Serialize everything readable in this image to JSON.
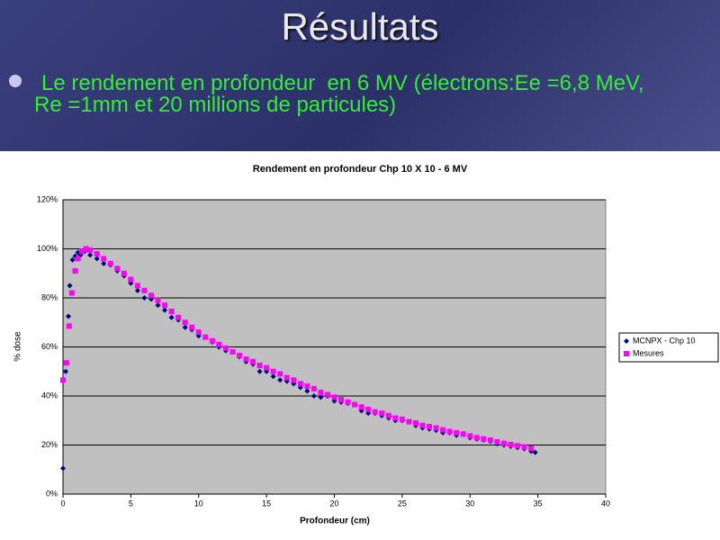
{
  "slide": {
    "title": "Résultats",
    "lines": [
      "Le rendement en profondeur  en 6 MV (électrons:Ee =6,8 MeV,",
      "Re =1mm et 20 millions de particules)"
    ]
  },
  "chart_data": {
    "type": "scatter",
    "title": "Rendement en profondeur Chp 10 X 10 - 6 MV",
    "x_label": "Profondeur (cm)",
    "y_label": "% dose",
    "xlim": [
      0,
      40
    ],
    "xticks": [
      0,
      5,
      10,
      15,
      20,
      25,
      30,
      35,
      40
    ],
    "ylim": [
      0,
      120
    ],
    "yticks": [
      {
        "value": 0,
        "label": "0%"
      },
      {
        "value": 20,
        "label": "20%"
      },
      {
        "value": 40,
        "label": "40%"
      },
      {
        "value": 60,
        "label": "60%"
      },
      {
        "value": 80,
        "label": "80%"
      },
      {
        "value": 100,
        "label": "100%"
      },
      {
        "value": 120,
        "label": "120%"
      }
    ],
    "grid": true,
    "legend": "right",
    "series": [
      {
        "name": "MCNPX - Chp 10",
        "color": "#000080",
        "marker": "diamond",
        "x": [
          0,
          0.2,
          0.4,
          0.5,
          0.7,
          0.9,
          1.1,
          1.3,
          1.6,
          2,
          2.5,
          3,
          3.5,
          4,
          4.5,
          5,
          5.5,
          6,
          6.5,
          7,
          7.5,
          8,
          8.5,
          9,
          9.5,
          10,
          10.5,
          11,
          11.5,
          12,
          12.5,
          13,
          13.5,
          14,
          14.5,
          15,
          15.5,
          16,
          16.5,
          17,
          17.5,
          18,
          18.5,
          19,
          19.5,
          20,
          20.5,
          21,
          21.5,
          22,
          22.5,
          23,
          23.5,
          24,
          24.5,
          25,
          25.5,
          26,
          26.5,
          27,
          27.5,
          28,
          28.5,
          29,
          29.5,
          30,
          30.5,
          31,
          31.5,
          32,
          32.5,
          33,
          33.5,
          34,
          34.5,
          34.8
        ],
        "values": [
          10.5,
          50,
          72.5,
          85,
          95.5,
          97,
          98.5,
          97.5,
          99,
          97.5,
          96,
          94,
          93.5,
          91,
          89,
          86,
          83,
          80,
          79.5,
          77,
          75,
          72,
          71,
          68,
          67,
          64.5,
          64,
          62,
          60,
          58.5,
          58,
          56,
          54,
          53,
          50,
          50,
          48,
          46.5,
          46,
          45,
          43.5,
          42,
          40,
          39.5,
          40,
          38,
          37.5,
          37,
          36.5,
          34,
          33,
          33,
          32,
          31,
          30,
          30,
          29.5,
          28,
          27,
          26.5,
          26,
          25,
          25,
          24,
          24.5,
          23,
          22.5,
          22,
          21.5,
          20.5,
          20,
          19.5,
          19,
          18.5,
          17.5,
          17
        ]
      },
      {
        "name": "Mesures",
        "color": "#ff00ff",
        "marker": "square",
        "x": [
          0,
          0.25,
          0.45,
          0.65,
          0.9,
          1.1,
          1.4,
          1.7,
          2,
          2.5,
          3,
          3.5,
          4,
          4.5,
          5,
          5.5,
          6,
          6.5,
          7,
          7.5,
          8,
          8.5,
          9,
          9.5,
          10,
          10.5,
          11,
          11.5,
          12,
          12.5,
          13,
          13.5,
          14,
          14.5,
          15,
          15.5,
          16,
          16.5,
          17,
          17.5,
          18,
          18.5,
          19,
          19.5,
          20,
          20.5,
          21,
          21.5,
          22,
          22.5,
          23,
          23.5,
          24,
          24.5,
          25,
          25.5,
          26,
          26.5,
          27,
          27.5,
          28,
          28.5,
          29,
          29.5,
          30,
          30.5,
          31,
          31.5,
          32,
          32.5,
          33,
          33.5,
          34,
          34.5
        ],
        "values": [
          46.5,
          53.5,
          68.5,
          82,
          91,
          96,
          99,
          100,
          99.5,
          98,
          96,
          94,
          92,
          90,
          87.5,
          85,
          83,
          81,
          79,
          77,
          74.5,
          72,
          70,
          68,
          66,
          64,
          62.5,
          61,
          59.5,
          58,
          56.5,
          55,
          54,
          52.5,
          51.5,
          50,
          49,
          47.5,
          46.5,
          45,
          44,
          43,
          41.5,
          40.5,
          39.5,
          38.5,
          37.5,
          36.5,
          35.5,
          34.5,
          33.5,
          33,
          32,
          31,
          30.5,
          29.5,
          29,
          28,
          27.5,
          27,
          26.2,
          25.5,
          25,
          24.5,
          23.7,
          23,
          22.5,
          22,
          21.3,
          20.7,
          20.2,
          19.7,
          19.2,
          18.7
        ]
      }
    ]
  }
}
